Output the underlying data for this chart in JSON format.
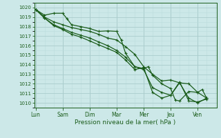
{
  "background_color": "#cce8e8",
  "grid_color_major": "#aacccc",
  "grid_color_minor": "#bbdddd",
  "line_color": "#1a5c1a",
  "marker_color": "#1a5c1a",
  "xlabel": "Pression niveau de la mer( hPa )",
  "ylim": [
    1009.5,
    1020.5
  ],
  "yticks": [
    1010,
    1011,
    1012,
    1013,
    1014,
    1015,
    1016,
    1017,
    1018,
    1019,
    1020
  ],
  "day_labels": [
    "Lun",
    "Sam",
    "Dim",
    "Mar",
    "Mer",
    "Jeu",
    "Ven"
  ],
  "day_positions": [
    0,
    1,
    2,
    3,
    4,
    5,
    6
  ],
  "xlim": [
    -0.05,
    6.7
  ],
  "series": [
    {
      "x": [
        0.0,
        0.33,
        0.67,
        1.0,
        1.17,
        1.33,
        1.67,
        2.0,
        2.33,
        2.67,
        3.0,
        3.17,
        3.33,
        3.67,
        4.0,
        4.17,
        4.33,
        4.67,
        5.0,
        5.17,
        5.33,
        5.67,
        6.0,
        6.17,
        6.33
      ],
      "y": [
        1019.8,
        1019.2,
        1019.4,
        1019.4,
        1018.8,
        1018.2,
        1018.0,
        1017.8,
        1017.5,
        1017.55,
        1017.5,
        1016.6,
        1015.2,
        1013.8,
        1013.6,
        1013.8,
        1012.9,
        1012.0,
        1011.5,
        1010.3,
        1010.2,
        1011.2,
        1011.1,
        1011.4,
        1010.5
      ],
      "lw": 0.9
    },
    {
      "x": [
        0.0,
        0.33,
        0.67,
        1.0,
        1.33,
        1.67,
        2.0,
        2.33,
        2.67,
        3.0,
        3.33,
        3.67,
        4.0,
        4.33,
        4.67,
        5.0,
        5.33,
        5.67,
        6.0,
        6.33
      ],
      "y": [
        1019.8,
        1019.0,
        1018.5,
        1018.2,
        1017.9,
        1017.7,
        1017.5,
        1017.2,
        1016.8,
        1016.6,
        1015.9,
        1015.1,
        1013.8,
        1013.0,
        1012.3,
        1012.4,
        1012.1,
        1012.0,
        1011.1,
        1010.5
      ],
      "lw": 0.9
    },
    {
      "x": [
        0.0,
        0.33,
        0.67,
        1.0,
        1.33,
        1.67,
        2.0,
        2.33,
        2.67,
        3.0,
        3.33,
        3.67,
        4.0,
        4.33,
        4.67,
        5.0,
        5.33,
        5.67,
        6.0,
        6.33
      ],
      "y": [
        1019.8,
        1018.9,
        1018.2,
        1017.8,
        1017.4,
        1017.1,
        1016.8,
        1016.4,
        1016.0,
        1015.5,
        1014.8,
        1013.8,
        1013.5,
        1011.6,
        1011.1,
        1010.8,
        1012.1,
        1010.5,
        1010.0,
        1010.5
      ],
      "lw": 0.9
    },
    {
      "x": [
        0.0,
        0.33,
        0.67,
        1.0,
        1.33,
        1.67,
        2.0,
        2.33,
        2.67,
        3.0,
        3.33,
        3.67,
        4.0,
        4.33,
        4.67,
        5.0,
        5.33,
        5.67,
        6.0,
        6.33
      ],
      "y": [
        1019.8,
        1018.9,
        1018.1,
        1017.7,
        1017.2,
        1016.9,
        1016.5,
        1016.1,
        1015.7,
        1015.3,
        1014.5,
        1013.5,
        1013.7,
        1011.1,
        1010.5,
        1010.8,
        1012.2,
        1010.2,
        1010.1,
        1010.4
      ],
      "lw": 0.9
    }
  ]
}
